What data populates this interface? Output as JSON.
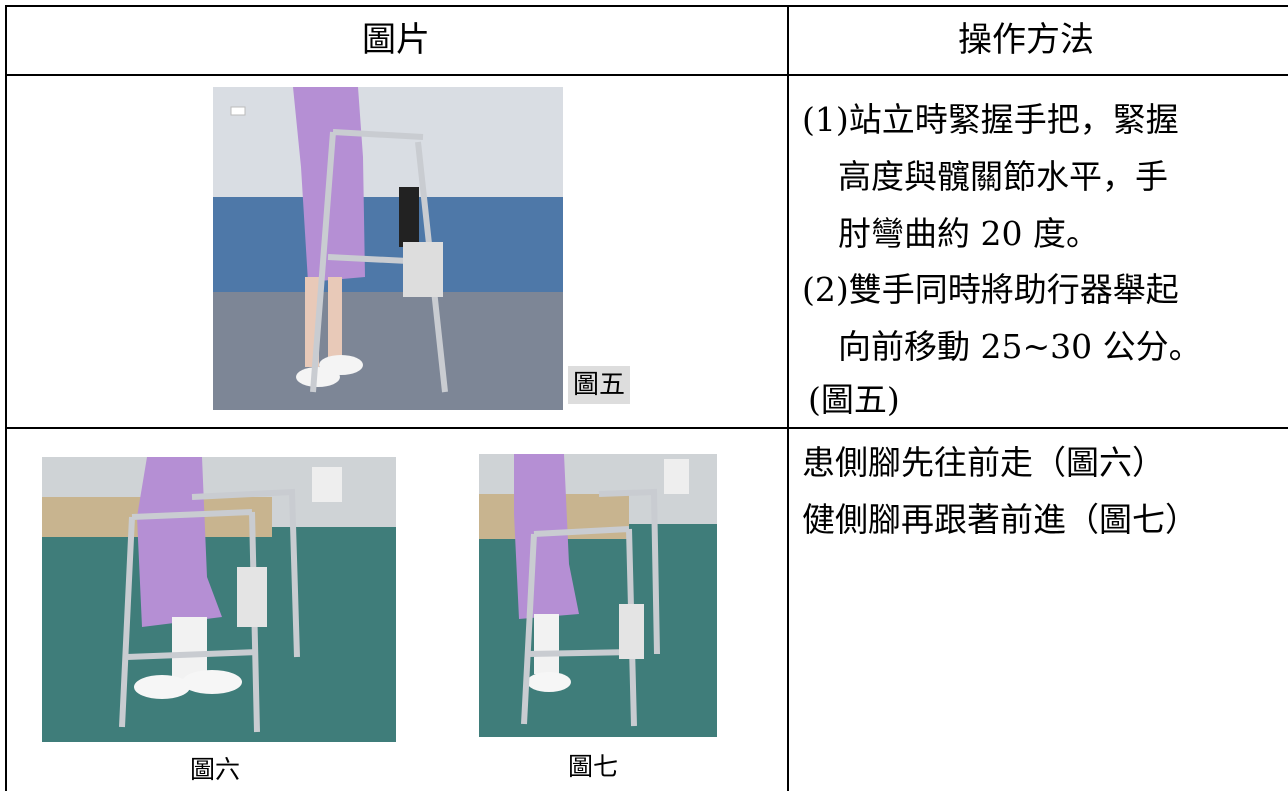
{
  "table": {
    "header": [
      "圖片",
      "操作方法"
    ],
    "rows": [
      {
        "captions": [
          "圖五"
        ],
        "lines": [
          "(1)站立時緊握手把，緊握",
          "高度與髖關節水平，手",
          "肘彎曲約 20 度。",
          "(2)雙手同時將助行器舉起",
          "向前移動 25~30 公分。",
          "(圖五)"
        ]
      },
      {
        "captions": [
          "圖六",
          "圖七"
        ],
        "lines": [
          "患側腳先往前走（圖六）",
          "健側腳再跟著前進（圖七）"
        ]
      }
    ]
  }
}
